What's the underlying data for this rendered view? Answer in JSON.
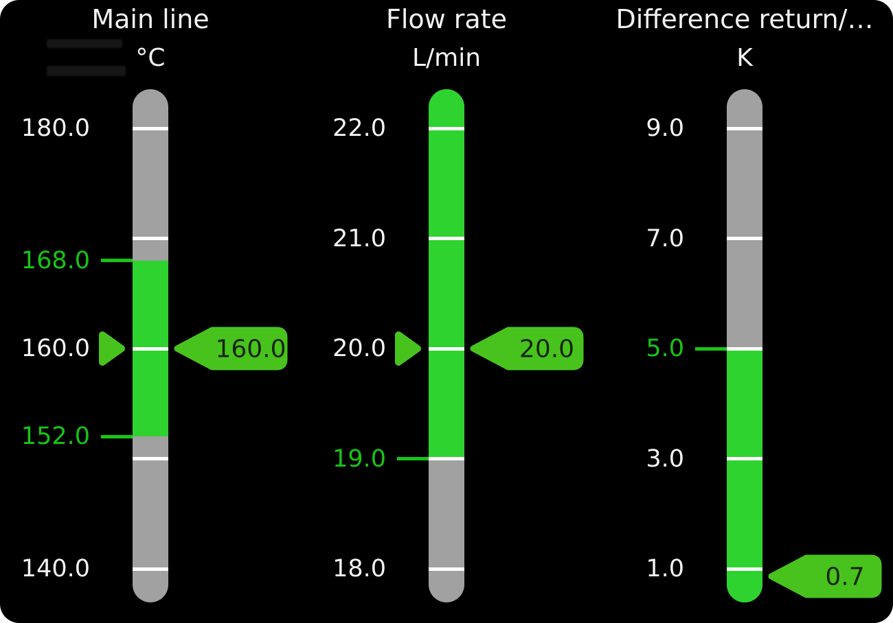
{
  "panel": {
    "background": "#000000",
    "outside_background": "#ffffff"
  },
  "colors": {
    "bar_green": "#2fd32f",
    "bar_gray": "#a1a1a1",
    "accent_green": "#48c31e",
    "label_white": "#f2f2f2",
    "label_green": "#16c516",
    "tick_white": "#ffffff",
    "badge_text": "#122500"
  },
  "gauges": [
    {
      "title": "Main line",
      "unit": "°C",
      "scale_max": 180.0,
      "scale_min": 140.0,
      "ticks": [
        {
          "value": 180,
          "label": "180.0"
        },
        {
          "value": 170,
          "label": null
        },
        {
          "value": 160,
          "label": "160.0"
        },
        {
          "value": 150,
          "label": null
        },
        {
          "value": 140,
          "label": "140.0"
        }
      ],
      "limits": [
        {
          "value": 168,
          "label": "168.0",
          "kind": "high"
        },
        {
          "value": 152,
          "label": "152.0",
          "kind": "low"
        }
      ],
      "green_zone": {
        "from": 168,
        "to": 152
      },
      "value": {
        "amount": 160.0,
        "display": "160.0",
        "pointer": true
      }
    },
    {
      "title": "Flow rate",
      "unit": "L/min",
      "scale_max": 22.0,
      "scale_min": 18.0,
      "ticks": [
        {
          "value": 22,
          "label": "22.0"
        },
        {
          "value": 21,
          "label": "21.0"
        },
        {
          "value": 20,
          "label": "20.0"
        },
        {
          "value": 19,
          "label": null
        },
        {
          "value": 18,
          "label": "18.0"
        }
      ],
      "limits": [
        {
          "value": 19,
          "label": "19.0",
          "kind": "low"
        }
      ],
      "green_zone": {
        "from": "top",
        "to": 19
      },
      "value": {
        "amount": 20.0,
        "display": "20.0",
        "pointer": true
      }
    },
    {
      "title": "Difference return/…",
      "unit": "K",
      "scale_max": 9.0,
      "scale_min": 1.0,
      "ticks": [
        {
          "value": 9,
          "label": "9.0"
        },
        {
          "value": 7,
          "label": "7.0"
        },
        {
          "value": 5,
          "label": null
        },
        {
          "value": 3,
          "label": "3.0"
        },
        {
          "value": 1,
          "label": "1.0"
        }
      ],
      "limits": [
        {
          "value": 5,
          "label": "5.0",
          "kind": "high"
        }
      ],
      "green_zone": {
        "from": 5,
        "to": "bottom"
      },
      "value": {
        "amount": 0.7,
        "display": "0.7",
        "pointer": false
      }
    }
  ]
}
